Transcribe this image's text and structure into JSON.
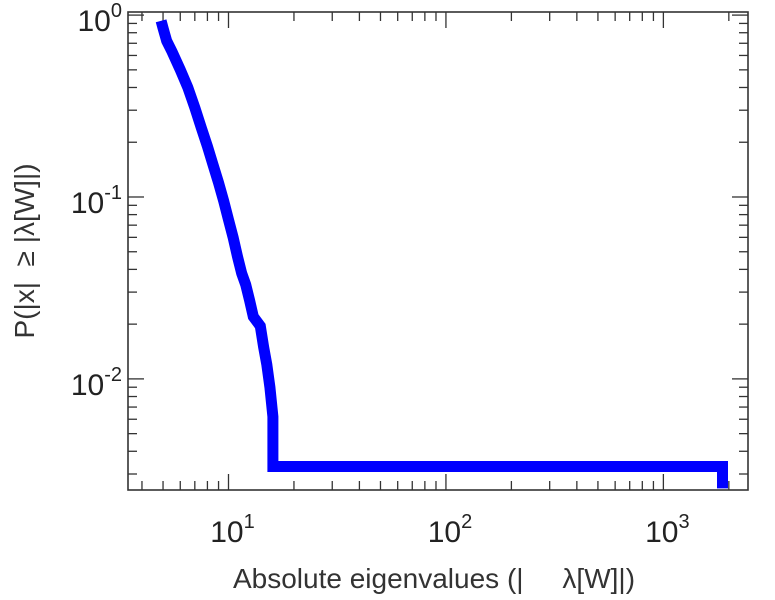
{
  "chart_data": {
    "type": "line",
    "step": true,
    "title": "",
    "xlabel": "Absolute eigenvalues (|     λ[W]|)",
    "ylabel": "P(|x|  ≥ |λ[W]|)",
    "xscale": "log",
    "yscale": "log",
    "xlim": [
      3.45,
      2450
    ],
    "ylim": [
      0.00245,
      1.04
    ],
    "grid": false,
    "legend": "none",
    "xticks": [
      {
        "value": 10,
        "base": "10",
        "exp": "1"
      },
      {
        "value": 100,
        "base": "10",
        "exp": "2"
      },
      {
        "value": 1000,
        "base": "10",
        "exp": "3"
      }
    ],
    "yticks": [
      {
        "value": 1,
        "base": "10",
        "exp": "0"
      },
      {
        "value": 0.1,
        "base": "10",
        "exp": "-1"
      },
      {
        "value": 0.01,
        "base": "10",
        "exp": "-2"
      }
    ],
    "series": [
      {
        "color": "#0000ff",
        "x": [
          4.9,
          5.0,
          5.1,
          5.2,
          5.5,
          6.0,
          6.5,
          7.0,
          7.5,
          8.0,
          8.5,
          9.0,
          9.5,
          10.0,
          10.5,
          11.0,
          11.5,
          12.0,
          12.5,
          13.0,
          14.0,
          14.5,
          15.0,
          15.5,
          16.0,
          16.0,
          1870,
          1870
        ],
        "y": [
          0.93,
          0.85,
          0.78,
          0.72,
          0.63,
          0.5,
          0.4,
          0.31,
          0.24,
          0.19,
          0.15,
          0.12,
          0.095,
          0.075,
          0.06,
          0.047,
          0.038,
          0.033,
          0.027,
          0.022,
          0.0195,
          0.015,
          0.012,
          0.009,
          0.0062,
          0.0033,
          0.0033,
          0.0025
        ]
      }
    ]
  }
}
